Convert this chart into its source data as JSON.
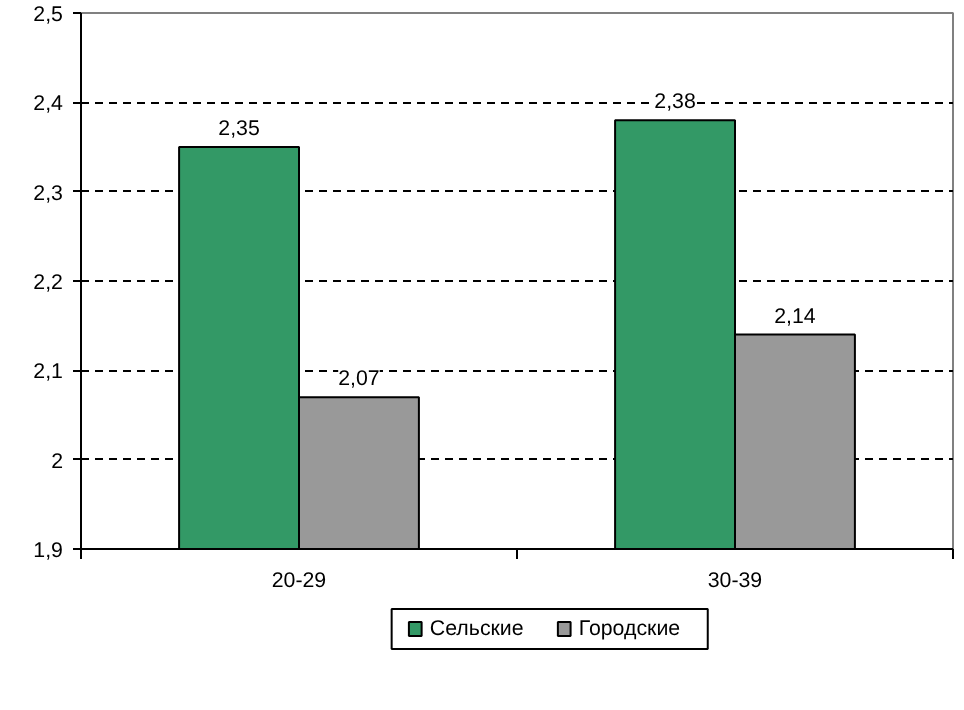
{
  "chart_data": {
    "type": "bar",
    "categories": [
      "20-29",
      "30-39"
    ],
    "series": [
      {
        "name": "Сельские",
        "color": "#339966",
        "values": [
          2.35,
          2.38
        ],
        "value_labels": [
          "2,35",
          "2,38"
        ]
      },
      {
        "name": "Городские",
        "color": "#999999",
        "values": [
          2.07,
          2.14
        ],
        "value_labels": [
          "2,07",
          "2,14"
        ]
      }
    ],
    "ylim": [
      1.9,
      2.5
    ],
    "yticks": [
      {
        "value": 1.9,
        "label": "1,9"
      },
      {
        "value": 2,
        "label": "2"
      },
      {
        "value": 2.1,
        "label": "2,1"
      },
      {
        "value": 2.2,
        "label": "2,2"
      },
      {
        "value": 2.3,
        "label": "2,3"
      },
      {
        "value": 2.4,
        "label": "2,4"
      },
      {
        "value": 2.5,
        "label": "2,5"
      }
    ],
    "grid": "y",
    "legend": "bottom"
  }
}
